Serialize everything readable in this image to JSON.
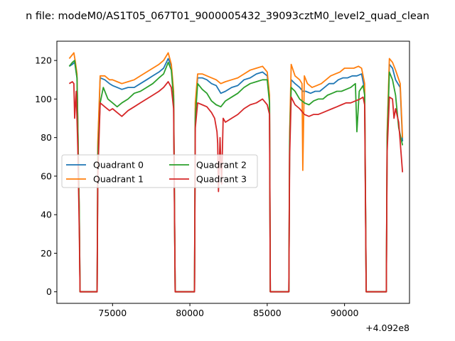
{
  "chart_data": {
    "type": "line",
    "title": "n file: modeM0/AS1T05_067T01_9000005432_39093cztM0_level2_quad_clean",
    "xlabel": "",
    "ylabel": "",
    "x_offset_label": "+4.092e8",
    "xlim": [
      71400,
      94200
    ],
    "ylim": [
      -6,
      130
    ],
    "xticks": [
      75000,
      80000,
      85000,
      90000
    ],
    "xtick_labels": [
      "75000",
      "80000",
      "85000",
      "90000"
    ],
    "yticks": [
      0,
      20,
      40,
      60,
      80,
      100,
      120
    ],
    "ytick_labels": [
      "0",
      "20",
      "40",
      "60",
      "80",
      "100",
      "120"
    ],
    "grid": false,
    "legend": {
      "placement": "center-left",
      "ncol": 2
    },
    "series": [
      {
        "name": "Quadrant 0",
        "color": "#1f77b4",
        "points": [
          [
            72200,
            117
          ],
          [
            72400,
            118
          ],
          [
            72550,
            119
          ],
          [
            72700,
            111
          ],
          [
            72850,
            42
          ],
          [
            72900,
            0
          ],
          [
            74000,
            0
          ],
          [
            74050,
            75
          ],
          [
            74200,
            111
          ],
          [
            74500,
            110
          ],
          [
            74800,
            108
          ],
          [
            75000,
            107
          ],
          [
            75300,
            106
          ],
          [
            75600,
            105
          ],
          [
            76000,
            106
          ],
          [
            76400,
            106
          ],
          [
            76800,
            108
          ],
          [
            77200,
            110
          ],
          [
            77600,
            112
          ],
          [
            78000,
            114
          ],
          [
            78300,
            116
          ],
          [
            78600,
            121
          ],
          [
            78800,
            117
          ],
          [
            78950,
            102
          ],
          [
            79050,
            0
          ],
          [
            80300,
            0
          ],
          [
            80350,
            95
          ],
          [
            80500,
            111
          ],
          [
            80800,
            111
          ],
          [
            81100,
            110
          ],
          [
            81400,
            108
          ],
          [
            81700,
            107
          ],
          [
            82000,
            103
          ],
          [
            82300,
            104
          ],
          [
            82700,
            106
          ],
          [
            83100,
            107
          ],
          [
            83500,
            110
          ],
          [
            83900,
            111
          ],
          [
            84300,
            113
          ],
          [
            84700,
            114
          ],
          [
            85000,
            112
          ],
          [
            85150,
            100
          ],
          [
            85200,
            0
          ],
          [
            86400,
            0
          ],
          [
            86450,
            80
          ],
          [
            86550,
            110
          ],
          [
            86800,
            108
          ],
          [
            87100,
            106
          ],
          [
            87300,
            104
          ],
          [
            87500,
            104
          ],
          [
            87800,
            103
          ],
          [
            88100,
            104
          ],
          [
            88400,
            104
          ],
          [
            88700,
            106
          ],
          [
            89000,
            108
          ],
          [
            89300,
            108
          ],
          [
            89600,
            110
          ],
          [
            89900,
            111
          ],
          [
            90200,
            111
          ],
          [
            90500,
            112
          ],
          [
            90800,
            112
          ],
          [
            91100,
            113
          ],
          [
            91300,
            105
          ],
          [
            91400,
            0
          ],
          [
            92700,
            0
          ],
          [
            92750,
            80
          ],
          [
            92900,
            118
          ],
          [
            93100,
            116
          ],
          [
            93300,
            110
          ],
          [
            93600,
            106
          ],
          [
            93750,
            78
          ]
        ]
      },
      {
        "name": "Quadrant 1",
        "color": "#ff7f0e",
        "points": [
          [
            72200,
            121
          ],
          [
            72400,
            123
          ],
          [
            72500,
            124
          ],
          [
            72600,
            119
          ],
          [
            72700,
            113
          ],
          [
            72850,
            42
          ],
          [
            72900,
            0
          ],
          [
            74000,
            0
          ],
          [
            74050,
            78
          ],
          [
            74200,
            112
          ],
          [
            74500,
            112
          ],
          [
            74800,
            110
          ],
          [
            75000,
            110
          ],
          [
            75300,
            109
          ],
          [
            75600,
            108
          ],
          [
            76000,
            109
          ],
          [
            76400,
            110
          ],
          [
            76800,
            112
          ],
          [
            77200,
            114
          ],
          [
            77600,
            116
          ],
          [
            78000,
            118
          ],
          [
            78300,
            120
          ],
          [
            78600,
            124
          ],
          [
            78800,
            118
          ],
          [
            78950,
            104
          ],
          [
            79050,
            0
          ],
          [
            80300,
            0
          ],
          [
            80350,
            98
          ],
          [
            80500,
            113
          ],
          [
            80800,
            113
          ],
          [
            81100,
            112
          ],
          [
            81400,
            111
          ],
          [
            81700,
            110
          ],
          [
            82000,
            108
          ],
          [
            82300,
            109
          ],
          [
            82700,
            110
          ],
          [
            83100,
            111
          ],
          [
            83500,
            113
          ],
          [
            83900,
            115
          ],
          [
            84300,
            116
          ],
          [
            84700,
            117
          ],
          [
            85000,
            114
          ],
          [
            85150,
            102
          ],
          [
            85200,
            0
          ],
          [
            86400,
            0
          ],
          [
            86450,
            82
          ],
          [
            86550,
            118
          ],
          [
            86800,
            112
          ],
          [
            87100,
            110
          ],
          [
            87250,
            108
          ],
          [
            87300,
            63
          ],
          [
            87400,
            112
          ],
          [
            87600,
            108
          ],
          [
            87900,
            106
          ],
          [
            88200,
            107
          ],
          [
            88500,
            108
          ],
          [
            88800,
            110
          ],
          [
            89100,
            112
          ],
          [
            89400,
            113
          ],
          [
            89700,
            114
          ],
          [
            90000,
            116
          ],
          [
            90300,
            116
          ],
          [
            90600,
            116
          ],
          [
            90900,
            117
          ],
          [
            91100,
            116
          ],
          [
            91300,
            108
          ],
          [
            91400,
            0
          ],
          [
            92700,
            0
          ],
          [
            92750,
            82
          ],
          [
            92900,
            121
          ],
          [
            93100,
            119
          ],
          [
            93300,
            115
          ],
          [
            93600,
            108
          ],
          [
            93750,
            80
          ]
        ]
      },
      {
        "name": "Quadrant 2",
        "color": "#2ca02c",
        "points": [
          [
            72200,
            117
          ],
          [
            72400,
            119
          ],
          [
            72550,
            120
          ],
          [
            72700,
            111
          ],
          [
            72850,
            40
          ],
          [
            72900,
            0
          ],
          [
            74000,
            0
          ],
          [
            74050,
            70
          ],
          [
            74200,
            98
          ],
          [
            74400,
            106
          ],
          [
            74700,
            100
          ],
          [
            75000,
            98
          ],
          [
            75300,
            96
          ],
          [
            75600,
            98
          ],
          [
            76000,
            100
          ],
          [
            76400,
            103
          ],
          [
            76800,
            104
          ],
          [
            77200,
            106
          ],
          [
            77600,
            108
          ],
          [
            78000,
            111
          ],
          [
            78300,
            113
          ],
          [
            78600,
            119
          ],
          [
            78800,
            115
          ],
          [
            78950,
            100
          ],
          [
            79050,
            0
          ],
          [
            80300,
            0
          ],
          [
            80350,
            90
          ],
          [
            80500,
            108
          ],
          [
            80800,
            105
          ],
          [
            81100,
            103
          ],
          [
            81400,
            99
          ],
          [
            81700,
            97
          ],
          [
            82000,
            96
          ],
          [
            82300,
            99
          ],
          [
            82700,
            101
          ],
          [
            83100,
            103
          ],
          [
            83500,
            106
          ],
          [
            83900,
            108
          ],
          [
            84300,
            109
          ],
          [
            84700,
            110
          ],
          [
            85000,
            110
          ],
          [
            85150,
            98
          ],
          [
            85200,
            0
          ],
          [
            86400,
            0
          ],
          [
            86450,
            78
          ],
          [
            86550,
            106
          ],
          [
            86800,
            104
          ],
          [
            87100,
            100
          ],
          [
            87400,
            98
          ],
          [
            87700,
            97
          ],
          [
            88000,
            99
          ],
          [
            88300,
            100
          ],
          [
            88600,
            100
          ],
          [
            88900,
            102
          ],
          [
            89200,
            103
          ],
          [
            89500,
            104
          ],
          [
            89800,
            104
          ],
          [
            90100,
            105
          ],
          [
            90400,
            106
          ],
          [
            90700,
            108
          ],
          [
            90800,
            83
          ],
          [
            90950,
            104
          ],
          [
            91200,
            107
          ],
          [
            91300,
            102
          ],
          [
            91400,
            0
          ],
          [
            92700,
            0
          ],
          [
            92750,
            78
          ],
          [
            92900,
            114
          ],
          [
            93100,
            110
          ],
          [
            93300,
            102
          ],
          [
            93500,
            85
          ],
          [
            93750,
            76
          ]
        ]
      },
      {
        "name": "Quadrant 3",
        "color": "#d62728",
        "points": [
          [
            72200,
            108
          ],
          [
            72400,
            109
          ],
          [
            72500,
            108
          ],
          [
            72550,
            90
          ],
          [
            72650,
            104
          ],
          [
            72750,
            75
          ],
          [
            72850,
            32
          ],
          [
            72900,
            0
          ],
          [
            74000,
            0
          ],
          [
            74050,
            60
          ],
          [
            74200,
            98
          ],
          [
            74500,
            96
          ],
          [
            74800,
            94
          ],
          [
            75000,
            95
          ],
          [
            75300,
            93
          ],
          [
            75600,
            91
          ],
          [
            76000,
            94
          ],
          [
            76400,
            96
          ],
          [
            76800,
            98
          ],
          [
            77200,
            100
          ],
          [
            77600,
            102
          ],
          [
            78000,
            104
          ],
          [
            78300,
            106
          ],
          [
            78600,
            109
          ],
          [
            78800,
            106
          ],
          [
            78950,
            95
          ],
          [
            79050,
            0
          ],
          [
            80300,
            0
          ],
          [
            80350,
            85
          ],
          [
            80500,
            98
          ],
          [
            80800,
            97
          ],
          [
            81100,
            96
          ],
          [
            81400,
            93
          ],
          [
            81600,
            90
          ],
          [
            81750,
            83
          ],
          [
            81800,
            77
          ],
          [
            81850,
            52
          ],
          [
            81950,
            80
          ],
          [
            82050,
            56
          ],
          [
            82150,
            90
          ],
          [
            82300,
            88
          ],
          [
            82700,
            90
          ],
          [
            83100,
            92
          ],
          [
            83500,
            95
          ],
          [
            83900,
            97
          ],
          [
            84300,
            98
          ],
          [
            84700,
            100
          ],
          [
            85000,
            97
          ],
          [
            85150,
            92
          ],
          [
            85200,
            0
          ],
          [
            86400,
            0
          ],
          [
            86450,
            70
          ],
          [
            86550,
            101
          ],
          [
            86800,
            97
          ],
          [
            87100,
            95
          ],
          [
            87400,
            92
          ],
          [
            87700,
            91
          ],
          [
            88000,
            92
          ],
          [
            88300,
            92
          ],
          [
            88600,
            93
          ],
          [
            88900,
            94
          ],
          [
            89200,
            95
          ],
          [
            89500,
            96
          ],
          [
            89800,
            97
          ],
          [
            90100,
            98
          ],
          [
            90400,
            98
          ],
          [
            90700,
            99
          ],
          [
            91000,
            100
          ],
          [
            91200,
            101
          ],
          [
            91300,
            97
          ],
          [
            91400,
            0
          ],
          [
            92700,
            0
          ],
          [
            92750,
            72
          ],
          [
            92900,
            101
          ],
          [
            93100,
            100
          ],
          [
            93200,
            90
          ],
          [
            93300,
            95
          ],
          [
            93500,
            88
          ],
          [
            93750,
            62
          ]
        ]
      }
    ]
  }
}
